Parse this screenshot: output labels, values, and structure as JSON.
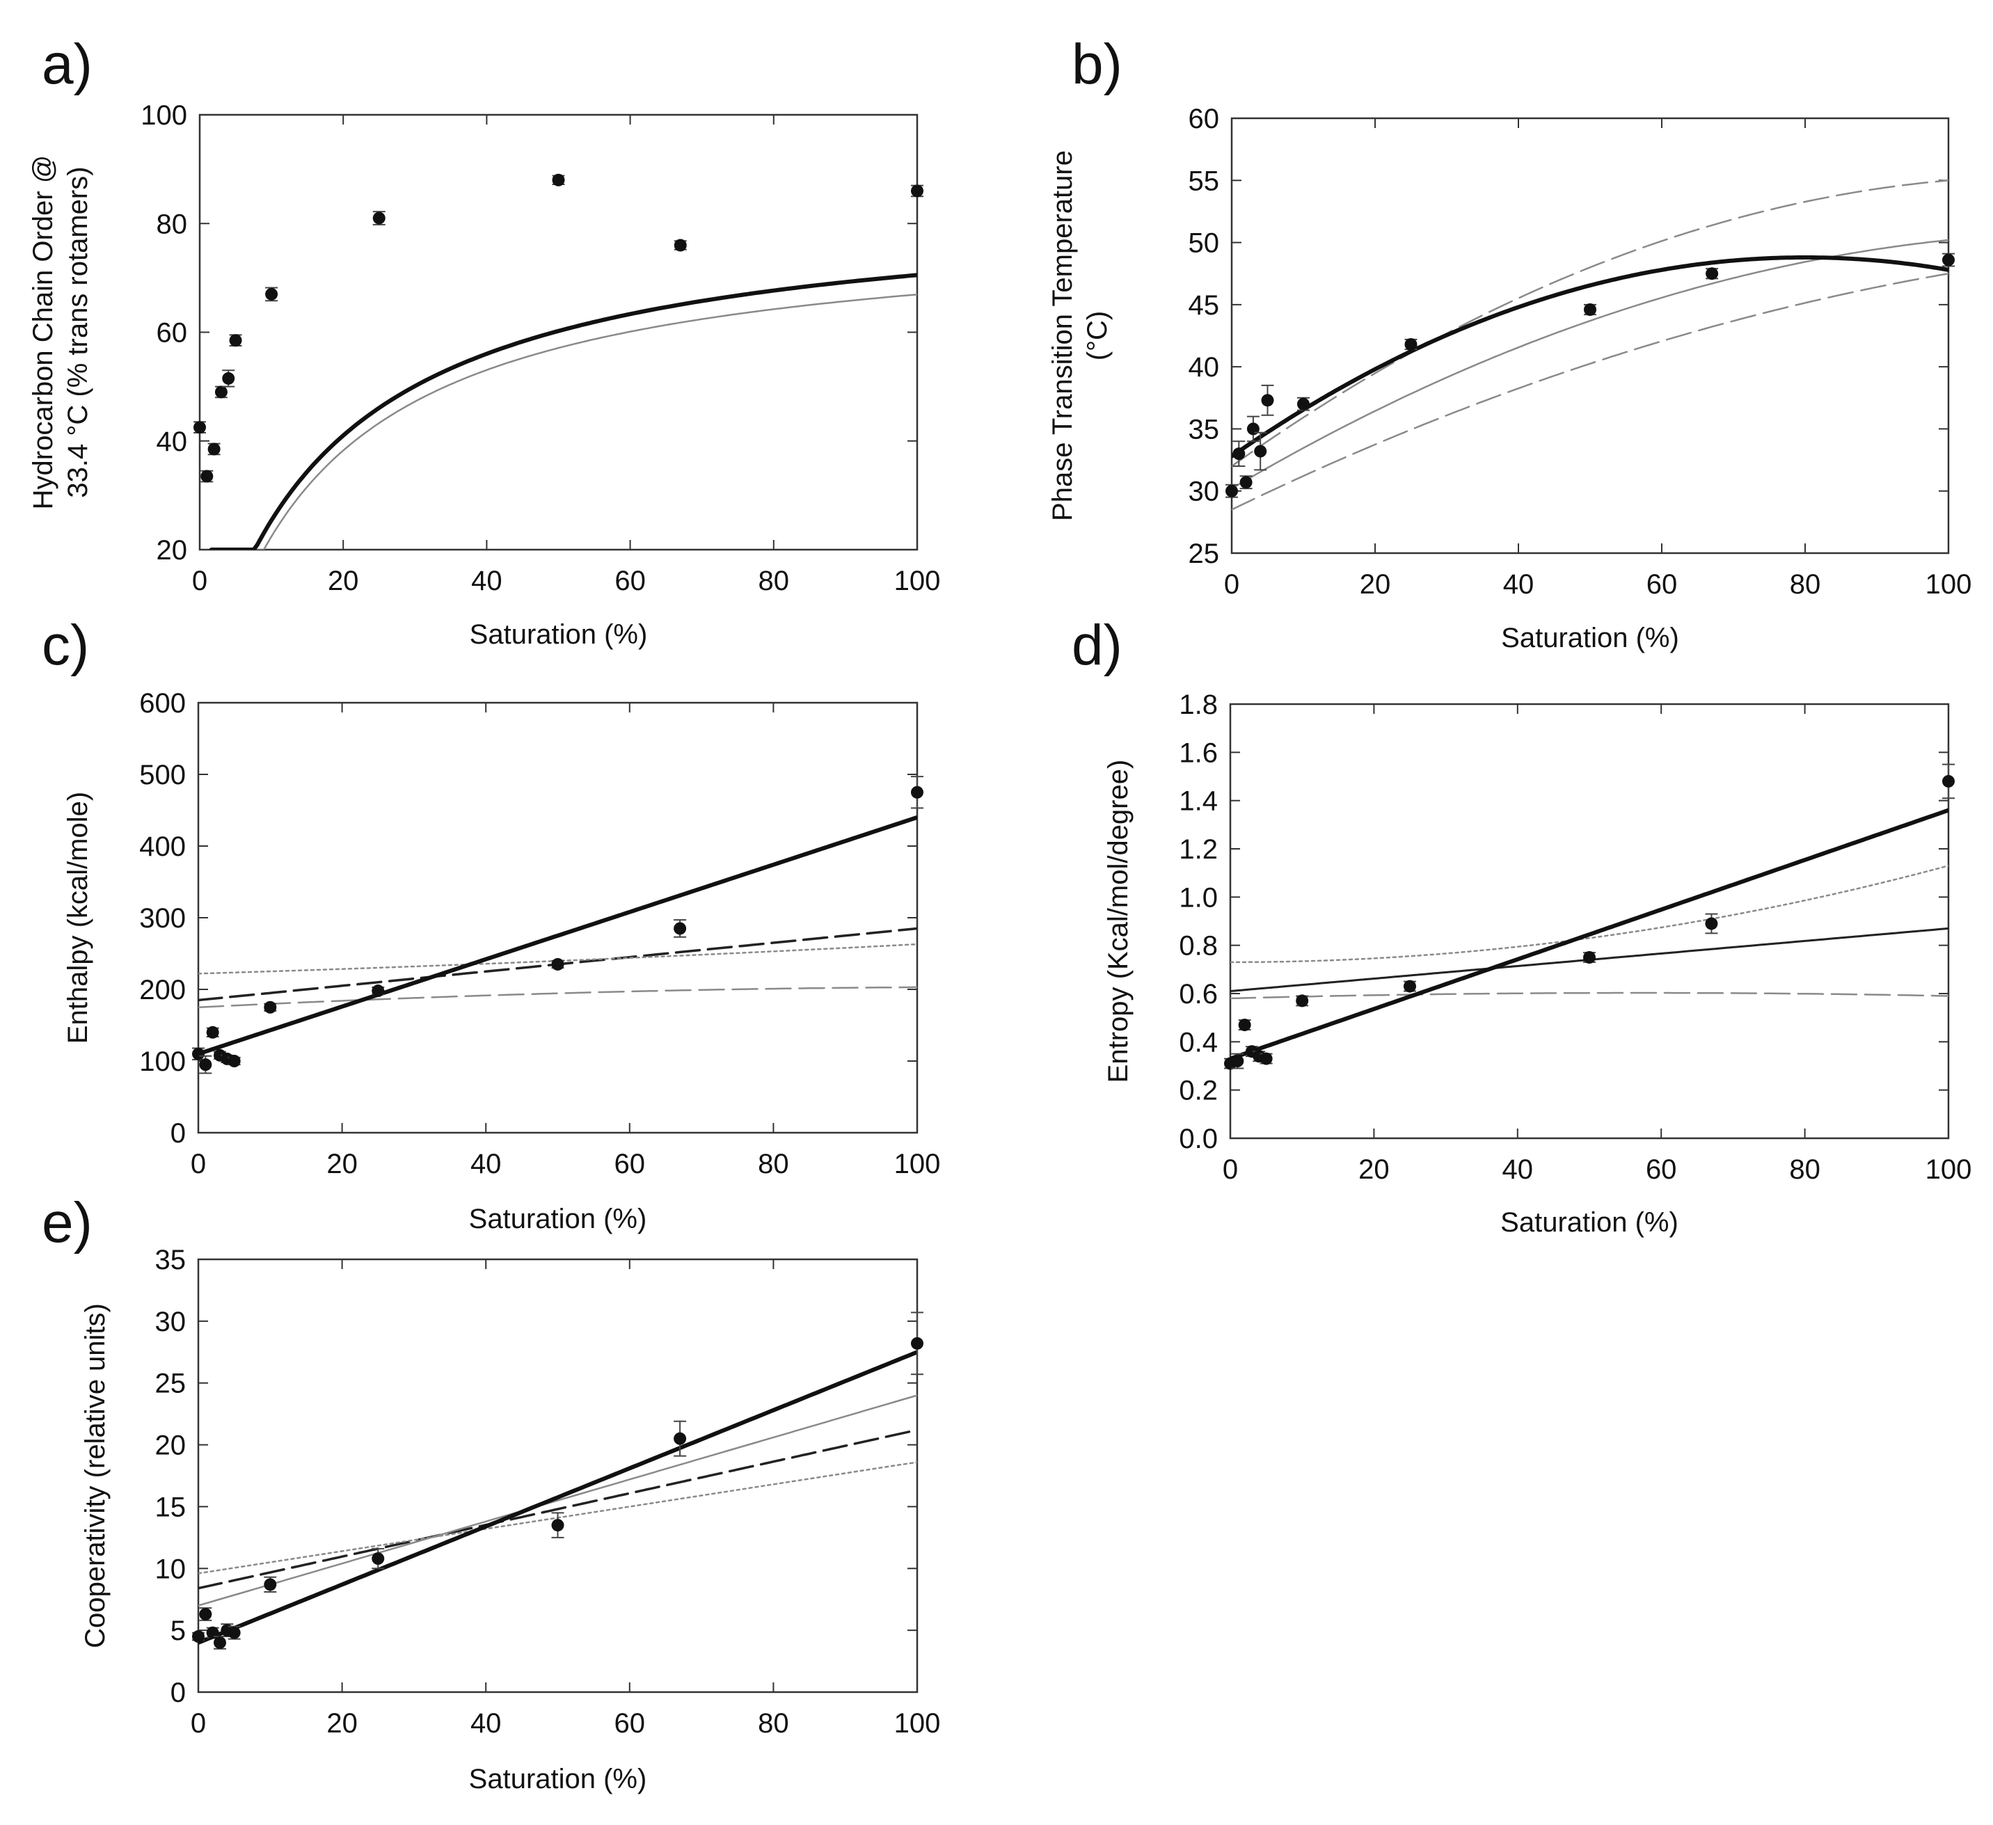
{
  "figure": {
    "description_panels": [
      "a",
      "b",
      "c",
      "d",
      "e"
    ]
  },
  "chart_data": [
    {
      "id": "a",
      "panel_label": "a)",
      "type": "scatter",
      "xlabel": "Saturation (%)",
      "ylabel_lines": [
        "Hydrocarbon Chain Order @",
        "33.4 °C (% trans rotamers)"
      ],
      "xlim": [
        0,
        100
      ],
      "ylim": [
        20,
        100
      ],
      "xticks": [
        0,
        20,
        40,
        60,
        80,
        100
      ],
      "yticks": [
        20,
        40,
        60,
        80,
        100
      ],
      "points": [
        {
          "x": 0,
          "y": 42.5,
          "err": 1
        },
        {
          "x": 1,
          "y": 33.5,
          "err": 1
        },
        {
          "x": 2,
          "y": 38.5,
          "err": 1
        },
        {
          "x": 3,
          "y": 49,
          "err": 1
        },
        {
          "x": 4,
          "y": 51.5,
          "err": 1.5
        },
        {
          "x": 5,
          "y": 58.5,
          "err": 1
        },
        {
          "x": 10,
          "y": 67,
          "err": 1.2
        },
        {
          "x": 25,
          "y": 81,
          "err": 1.2
        },
        {
          "x": 50,
          "y": 88,
          "err": 0.8
        },
        {
          "x": 67,
          "y": 76,
          "err": 0.8
        },
        {
          "x": 100,
          "y": 86,
          "err": 1
        }
      ],
      "curves": [
        {
          "name": "fit",
          "style": "thick",
          "fn": "hyper",
          "params": [
            84.5,
            1.62,
            19.5
          ]
        },
        {
          "name": "fit-2",
          "style": "thin-gray",
          "fn": "hyper",
          "params": [
            80.0,
            2.6,
            19.0
          ]
        }
      ]
    },
    {
      "id": "b",
      "panel_label": "b)",
      "type": "scatter",
      "xlabel": "Saturation (%)",
      "ylabel_lines": [
        "Phase Transition Temperature",
        "(°C)"
      ],
      "xlim": [
        0,
        100
      ],
      "ylim": [
        25,
        60
      ],
      "xticks": [
        0,
        20,
        40,
        60,
        80,
        100
      ],
      "yticks": [
        25,
        30,
        35,
        40,
        45,
        50,
        55,
        60
      ],
      "points": [
        {
          "x": 0,
          "y": 30,
          "err": 0.5
        },
        {
          "x": 1,
          "y": 33,
          "err": 1
        },
        {
          "x": 2,
          "y": 30.7,
          "err": 0.5
        },
        {
          "x": 3,
          "y": 35,
          "err": 1
        },
        {
          "x": 4,
          "y": 33.2,
          "err": 1.5
        },
        {
          "x": 5,
          "y": 37.3,
          "err": 1.2
        },
        {
          "x": 10,
          "y": 37,
          "err": 0.5
        },
        {
          "x": 25,
          "y": 41.8,
          "err": 0.4
        },
        {
          "x": 50,
          "y": 44.6,
          "err": 0.4
        },
        {
          "x": 67,
          "y": 47.5,
          "err": 0.4
        },
        {
          "x": 100,
          "y": 48.6,
          "err": 0.5
        }
      ],
      "curves": [
        {
          "name": "fit",
          "style": "thick",
          "fn": "poly",
          "params": [
            32.8,
            0.4,
            -0.0025
          ]
        },
        {
          "name": "fit-2",
          "style": "thin-gray",
          "fn": "poly",
          "params": [
            30.2,
            0.34,
            -0.0014
          ]
        },
        {
          "name": "upper-band",
          "style": "dash-gray",
          "fn": "poly",
          "params": [
            32.0,
            0.41,
            -0.0018
          ]
        },
        {
          "name": "lower-band",
          "style": "dash-gray",
          "fn": "poly",
          "params": [
            28.5,
            0.28,
            -0.0009
          ]
        }
      ]
    },
    {
      "id": "c",
      "panel_label": "c)",
      "type": "scatter",
      "xlabel": "Saturation (%)",
      "ylabel_lines": [
        "Enthalpy (kcal/mole)"
      ],
      "xlim": [
        0,
        100
      ],
      "ylim": [
        0,
        600
      ],
      "xticks": [
        0,
        20,
        40,
        60,
        80,
        100
      ],
      "yticks": [
        0,
        100,
        200,
        300,
        400,
        500,
        600
      ],
      "points": [
        {
          "x": 0,
          "y": 110,
          "err": 8
        },
        {
          "x": 1,
          "y": 95,
          "err": 12
        },
        {
          "x": 2,
          "y": 140,
          "err": 6
        },
        {
          "x": 3,
          "y": 108,
          "err": 5
        },
        {
          "x": 4,
          "y": 103,
          "err": 5
        },
        {
          "x": 5,
          "y": 100,
          "err": 5
        },
        {
          "x": 10,
          "y": 175,
          "err": 5
        },
        {
          "x": 25,
          "y": 198,
          "err": 5
        },
        {
          "x": 50,
          "y": 235,
          "err": 5
        },
        {
          "x": 67,
          "y": 285,
          "err": 12
        },
        {
          "x": 100,
          "y": 475,
          "err": 22
        }
      ],
      "curves": [
        {
          "name": "fit",
          "style": "thick",
          "fn": "poly",
          "params": [
            110,
            3.3,
            0
          ]
        },
        {
          "name": "fit-2",
          "style": "dash-black",
          "fn": "poly",
          "params": [
            185,
            1.0,
            0
          ]
        },
        {
          "name": "upper-band",
          "style": "dot-gray",
          "fn": "poly",
          "params": [
            222,
            0.3,
            0.0011
          ]
        },
        {
          "name": "lower-band",
          "style": "dash-gray",
          "fn": "poly",
          "params": [
            175,
            0.5,
            -0.0022
          ]
        }
      ]
    },
    {
      "id": "d",
      "panel_label": "d)",
      "type": "scatter",
      "xlabel": "Saturation (%)",
      "ylabel_lines": [
        "Entropy (Kcal/mol/degree)"
      ],
      "xlim": [
        0,
        100
      ],
      "ylim": [
        0,
        1.8
      ],
      "xticks": [
        0,
        20,
        40,
        60,
        80,
        100
      ],
      "yticks": [
        0.0,
        0.2,
        0.4,
        0.6,
        0.8,
        1.0,
        1.2,
        1.4,
        1.6,
        1.8
      ],
      "ytick_labels": [
        "0.0",
        "0.2",
        "0.4",
        "0.6",
        "0.8",
        "1.0",
        "1.2",
        "1.4",
        "1.6",
        "1.8"
      ],
      "points": [
        {
          "x": 0,
          "y": 0.31,
          "err": 0.02
        },
        {
          "x": 1,
          "y": 0.32,
          "err": 0.03
        },
        {
          "x": 2,
          "y": 0.47,
          "err": 0.02
        },
        {
          "x": 3,
          "y": 0.36,
          "err": 0.02
        },
        {
          "x": 4,
          "y": 0.34,
          "err": 0.02
        },
        {
          "x": 5,
          "y": 0.33,
          "err": 0.02
        },
        {
          "x": 10,
          "y": 0.57,
          "err": 0.02
        },
        {
          "x": 25,
          "y": 0.63,
          "err": 0.02
        },
        {
          "x": 50,
          "y": 0.75,
          "err": 0.02
        },
        {
          "x": 67,
          "y": 0.89,
          "err": 0.04
        },
        {
          "x": 100,
          "y": 1.48,
          "err": 0.07
        }
      ],
      "curves": [
        {
          "name": "fit",
          "style": "thick",
          "fn": "poly",
          "params": [
            0.33,
            0.0103,
            0
          ]
        },
        {
          "name": "fit-2",
          "style": "thin-black",
          "fn": "poly",
          "params": [
            0.61,
            0.0026,
            0
          ]
        },
        {
          "name": "upper-band",
          "style": "dot-gray",
          "fn": "poly",
          "params": [
            0.73,
            0.0,
            4e-05
          ]
        },
        {
          "name": "lower-band",
          "style": "dash-gray",
          "fn": "poly",
          "params": [
            0.58,
            0.0008,
            -7e-06
          ]
        }
      ]
    },
    {
      "id": "e",
      "panel_label": "e)",
      "type": "scatter",
      "xlabel": "Saturation (%)",
      "ylabel_lines": [
        "Cooperativity (relative units)"
      ],
      "xlim": [
        0,
        100
      ],
      "ylim": [
        0,
        35
      ],
      "xticks": [
        0,
        20,
        40,
        60,
        80,
        100
      ],
      "yticks": [
        0,
        5,
        10,
        15,
        20,
        25,
        30,
        35
      ],
      "points": [
        {
          "x": 0,
          "y": 4.5,
          "err": 0.3
        },
        {
          "x": 1,
          "y": 6.3,
          "err": 0.5
        },
        {
          "x": 2,
          "y": 4.8,
          "err": 0.4
        },
        {
          "x": 3,
          "y": 4.0,
          "err": 0.5
        },
        {
          "x": 4,
          "y": 5.0,
          "err": 0.5
        },
        {
          "x": 5,
          "y": 4.8,
          "err": 0.5
        },
        {
          "x": 10,
          "y": 8.7,
          "err": 0.6
        },
        {
          "x": 25,
          "y": 10.8,
          "err": 0.8
        },
        {
          "x": 50,
          "y": 13.5,
          "err": 1.0
        },
        {
          "x": 67,
          "y": 20.5,
          "err": 1.4
        },
        {
          "x": 100,
          "y": 28.2,
          "err": 2.5
        }
      ],
      "curves": [
        {
          "name": "fit",
          "style": "thick",
          "fn": "poly",
          "params": [
            4.0,
            0.235,
            0
          ]
        },
        {
          "name": "fit-2",
          "style": "dash-black",
          "fn": "poly",
          "params": [
            8.4,
            0.128,
            0
          ]
        },
        {
          "name": "upper-band",
          "style": "thin-gray",
          "fn": "poly",
          "params": [
            7.0,
            0.17,
            0
          ]
        },
        {
          "name": "lower-band",
          "style": "dot-gray",
          "fn": "poly",
          "params": [
            9.6,
            0.09,
            0
          ]
        }
      ]
    }
  ]
}
